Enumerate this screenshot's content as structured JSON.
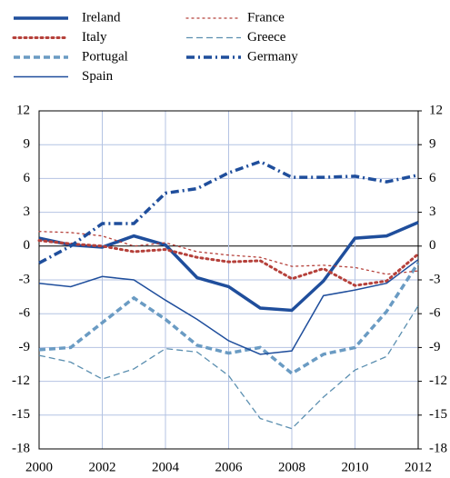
{
  "chart_data": {
    "type": "line",
    "x": [
      2000,
      2001,
      2002,
      2003,
      2004,
      2005,
      2006,
      2007,
      2008,
      2009,
      2010,
      2011,
      2012
    ],
    "xlim": [
      2000,
      2012
    ],
    "xticks": [
      2000,
      2002,
      2004,
      2006,
      2008,
      2010,
      2012
    ],
    "ylim": [
      -18,
      12
    ],
    "yticks": [
      -18,
      -15,
      -12,
      -9,
      -6,
      -3,
      0,
      3,
      6,
      9,
      12
    ],
    "y2lim": [
      -18,
      12
    ],
    "y2ticks": [
      -18,
      -15,
      -12,
      -9,
      -6,
      -3,
      0,
      3,
      6,
      9,
      12
    ],
    "grid": true,
    "series": [
      {
        "name": "Ireland",
        "color": "#1f4e9c",
        "linestyle": "solid",
        "linewidth": 3.5,
        "values": [
          0.7,
          0.1,
          -0.1,
          0.9,
          0.1,
          -2.8,
          -3.6,
          -5.5,
          -5.7,
          -3.1,
          0.7,
          0.9,
          2.1
        ]
      },
      {
        "name": "Italy",
        "color": "#b5403a",
        "linestyle": "dotted",
        "linewidth": 3,
        "values": [
          0.5,
          0.2,
          0.0,
          -0.5,
          -0.3,
          -1.0,
          -1.4,
          -1.3,
          -2.9,
          -2.0,
          -3.5,
          -3.1,
          -0.7
        ]
      },
      {
        "name": "Portugal",
        "color": "#6a9bc3",
        "linestyle": "dashed",
        "linewidth": 3.5,
        "values": [
          -9.2,
          -9.0,
          -6.8,
          -4.6,
          -6.5,
          -8.8,
          -9.5,
          -9.0,
          -11.3,
          -9.6,
          -9.0,
          -5.8,
          -1.5
        ]
      },
      {
        "name": "Spain",
        "color": "#1f4e9c",
        "linestyle": "solid",
        "linewidth": 1.5,
        "values": [
          -3.3,
          -3.6,
          -2.7,
          -3.0,
          -4.8,
          -6.5,
          -8.4,
          -9.6,
          -9.3,
          -4.4,
          -3.9,
          -3.3,
          -1.2
        ]
      },
      {
        "name": "France",
        "color": "#b5403a",
        "linestyle": "dotted",
        "linewidth": 1.3,
        "values": [
          1.3,
          1.2,
          0.9,
          0.0,
          0.3,
          -0.5,
          -0.8,
          -1.0,
          -1.8,
          -1.7,
          -1.9,
          -2.5,
          -2.2
        ]
      },
      {
        "name": "Greece",
        "color": "#5b8fb0",
        "linestyle": "dashed",
        "linewidth": 1.3,
        "values": [
          -9.7,
          -10.3,
          -11.8,
          -10.9,
          -9.1,
          -9.4,
          -11.5,
          -15.3,
          -16.2,
          -13.4,
          -11.0,
          -9.8,
          -5.3
        ]
      },
      {
        "name": "Germany",
        "color": "#1f4e9c",
        "linestyle": "dashdot",
        "linewidth": 3.5,
        "values": [
          -1.5,
          0.0,
          2.0,
          2.0,
          4.7,
          5.1,
          6.5,
          7.5,
          6.1,
          6.1,
          6.2,
          5.7,
          6.3
        ]
      }
    ]
  }
}
